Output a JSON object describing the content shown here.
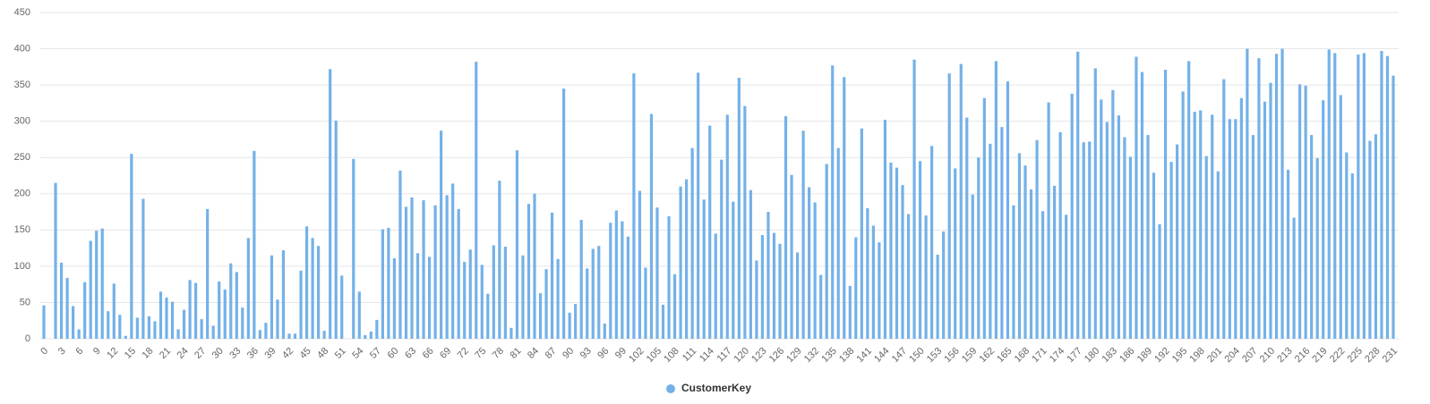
{
  "chart_data": {
    "type": "bar",
    "categories": [
      "0",
      null,
      null,
      "3",
      null,
      null,
      "6",
      null,
      null,
      "9",
      null,
      null,
      "12",
      null,
      null,
      "15",
      null,
      null,
      "18",
      null,
      null,
      "21",
      null,
      null,
      "24",
      null,
      null,
      "27",
      null,
      null,
      "30",
      null,
      null,
      "33",
      null,
      null,
      "36",
      null,
      null,
      "39",
      null,
      null,
      "42",
      null,
      null,
      "45",
      null,
      null,
      "48",
      null,
      null,
      "51",
      null,
      null,
      "54",
      null,
      null,
      "57",
      null,
      null,
      "60",
      null,
      null,
      "63",
      null,
      null,
      "66",
      null,
      null,
      "69",
      null,
      null,
      "72",
      null,
      null,
      "75",
      null,
      null,
      "78",
      null,
      null,
      "81",
      null,
      null,
      "84",
      null,
      null,
      "87",
      null,
      null,
      "90",
      null,
      null,
      "93",
      null,
      null,
      "96",
      null,
      null,
      "99",
      null,
      null,
      "102",
      null,
      null,
      "105",
      null,
      null,
      "108",
      null,
      null,
      "111",
      null,
      null,
      "114",
      null,
      null,
      "117",
      null,
      null,
      "120",
      null,
      null,
      "123",
      null,
      null,
      "126",
      null,
      null,
      "129",
      null,
      null,
      "132",
      null,
      null,
      "135",
      null,
      null,
      "138",
      null,
      null,
      "141",
      null,
      null,
      "144",
      null,
      null,
      "147",
      null,
      null,
      "150",
      null,
      null,
      "153",
      null,
      null,
      "156",
      null,
      null,
      "159",
      null,
      null,
      "162",
      null,
      null,
      "165",
      null,
      null,
      "168",
      null,
      null,
      "171",
      null,
      null,
      "174",
      null,
      null,
      "177",
      null,
      null,
      "180",
      null,
      null,
      "183",
      null,
      null,
      "186",
      null,
      null,
      "189",
      null,
      null,
      "192",
      null,
      null,
      "195",
      null,
      null,
      "198",
      null,
      null,
      "201",
      null,
      null,
      "204",
      null,
      null,
      "207",
      null,
      null,
      "210",
      null,
      null,
      "213",
      null,
      null,
      "216",
      null,
      null,
      "219",
      null,
      null,
      "222",
      null,
      null,
      "225",
      null,
      null,
      "228",
      null,
      null,
      "231"
    ],
    "series": [
      {
        "name": "CustomerKey",
        "color": "#74b1e8",
        "values": [
          46,
          0,
          215,
          105,
          84,
          45,
          13,
          78,
          135,
          149,
          152,
          38,
          76,
          33,
          4,
          255,
          29,
          193,
          31,
          24,
          65,
          57,
          51,
          13,
          40,
          81,
          77,
          27,
          179,
          18,
          79,
          68,
          104,
          92,
          43,
          139,
          259,
          12,
          22,
          115,
          54,
          122,
          7,
          7,
          94,
          155,
          139,
          128,
          11,
          372,
          301,
          87,
          0,
          248,
          65,
          5,
          10,
          26,
          151,
          153,
          111,
          232,
          182,
          195,
          118,
          191,
          113,
          184,
          287,
          198,
          214,
          179,
          106,
          123,
          382,
          102,
          62,
          129,
          218,
          127,
          15,
          260,
          115,
          186,
          200,
          63,
          96,
          174,
          110,
          345,
          36,
          48,
          164,
          97,
          124,
          128,
          21,
          160,
          177,
          162,
          141,
          366,
          204,
          98,
          310,
          181,
          47,
          169,
          89,
          210,
          220,
          263,
          367,
          192,
          294,
          145,
          247,
          309,
          189,
          360,
          321,
          205,
          108,
          143,
          175,
          146,
          131,
          307,
          226,
          119,
          287,
          209,
          188,
          88,
          241,
          377,
          263,
          361,
          73,
          140,
          290,
          180,
          156,
          133,
          302,
          243,
          236,
          212,
          172,
          385,
          245,
          170,
          266,
          116,
          148,
          366,
          235,
          379,
          305,
          199,
          250,
          332,
          269,
          383,
          292,
          355,
          184,
          256,
          239,
          206,
          274,
          176,
          326,
          211,
          285,
          171,
          338,
          396,
          271,
          272,
          373,
          330,
          299,
          343,
          308,
          278,
          251,
          389,
          368,
          281,
          229,
          158,
          371,
          244,
          268,
          341,
          383,
          313,
          315,
          252,
          309,
          231,
          358,
          303,
          303,
          332,
          400,
          281,
          387,
          327,
          353,
          393,
          400,
          233,
          167,
          351,
          349,
          281,
          249,
          329,
          399,
          394,
          336,
          257,
          228,
          392,
          394,
          273,
          282,
          397,
          390,
          363
        ]
      }
    ],
    "ylim": [
      0,
      450
    ],
    "yticks": [
      0,
      50,
      100,
      150,
      200,
      250,
      300,
      350,
      400,
      450
    ],
    "grid": true
  }
}
